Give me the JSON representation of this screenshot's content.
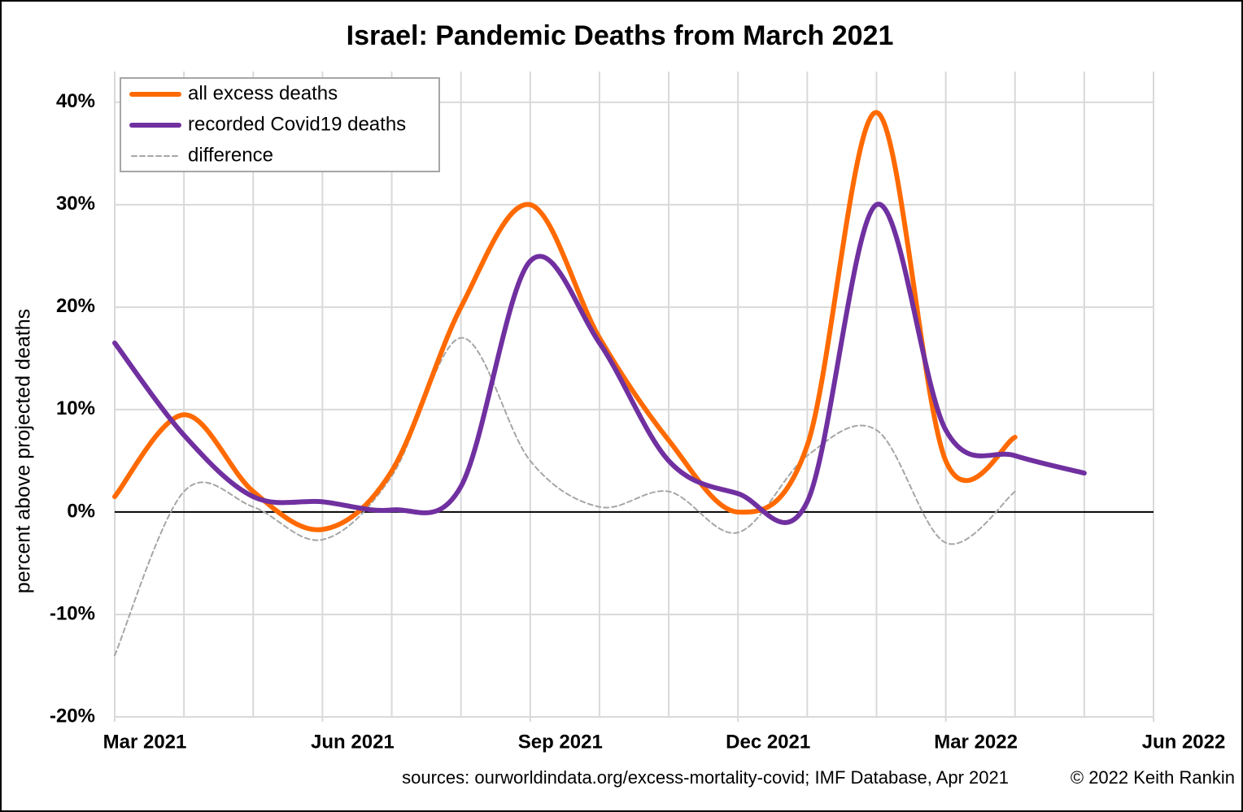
{
  "chart_data": {
    "type": "line",
    "title": "Israel: Pandemic Deaths from March 2021",
    "y_label": "percent above projected deaths",
    "source": "sources: ourworldindata.org/excess-mortality-covid; IMF Database, Apr 2021",
    "credit": "© 2022 Keith Rankin",
    "x": [
      "2021-03",
      "2021-04",
      "2021-05",
      "2021-06",
      "2021-07",
      "2021-08",
      "2021-09",
      "2021-10",
      "2021-11",
      "2021-12",
      "2022-01",
      "2022-02",
      "2022-03",
      "2022-04",
      "2022-05"
    ],
    "series": [
      {
        "name": "all excess deaths",
        "color": "#ff6a00",
        "style": "solid",
        "values": [
          1.5,
          9.5,
          2,
          -1.7,
          4,
          20,
          30,
          17,
          7,
          0,
          6.5,
          39,
          5,
          7.3,
          null
        ]
      },
      {
        "name": "recorded Covid19 deaths",
        "color": "#7030a0",
        "style": "solid",
        "values": [
          16.5,
          7.5,
          1.5,
          1,
          0.2,
          2.5,
          24.5,
          16.5,
          5,
          1.8,
          1,
          30,
          8,
          5.5,
          3.8
        ]
      },
      {
        "name": "difference",
        "color": "#a6a6a6",
        "style": "dashed",
        "values": [
          -14,
          2,
          0.5,
          -2.7,
          3.5,
          17,
          5,
          0.5,
          2,
          -2,
          5.5,
          8,
          -3,
          2,
          null
        ]
      }
    ],
    "xlim": [
      "2021-03",
      "2022-06"
    ],
    "xticks": [
      {
        "value": "2021-03",
        "label": "Mar 2021"
      },
      {
        "value": "2021-06",
        "label": "Jun 2021"
      },
      {
        "value": "2021-09",
        "label": "Sep 2021"
      },
      {
        "value": "2021-12",
        "label": "Dec 2021"
      },
      {
        "value": "2022-03",
        "label": "Mar 2022"
      },
      {
        "value": "2022-06",
        "label": "Jun 2022"
      }
    ],
    "ylim": [
      -20,
      43
    ],
    "yticks": [
      {
        "value": -20,
        "label": "-20%"
      },
      {
        "value": -10,
        "label": "-10%"
      },
      {
        "value": 0,
        "label": "0%"
      },
      {
        "value": 10,
        "label": "10%"
      },
      {
        "value": 20,
        "label": "20%"
      },
      {
        "value": 30,
        "label": "30%"
      },
      {
        "value": 40,
        "label": "40%"
      }
    ],
    "grid": true,
    "legend": "top-left"
  }
}
